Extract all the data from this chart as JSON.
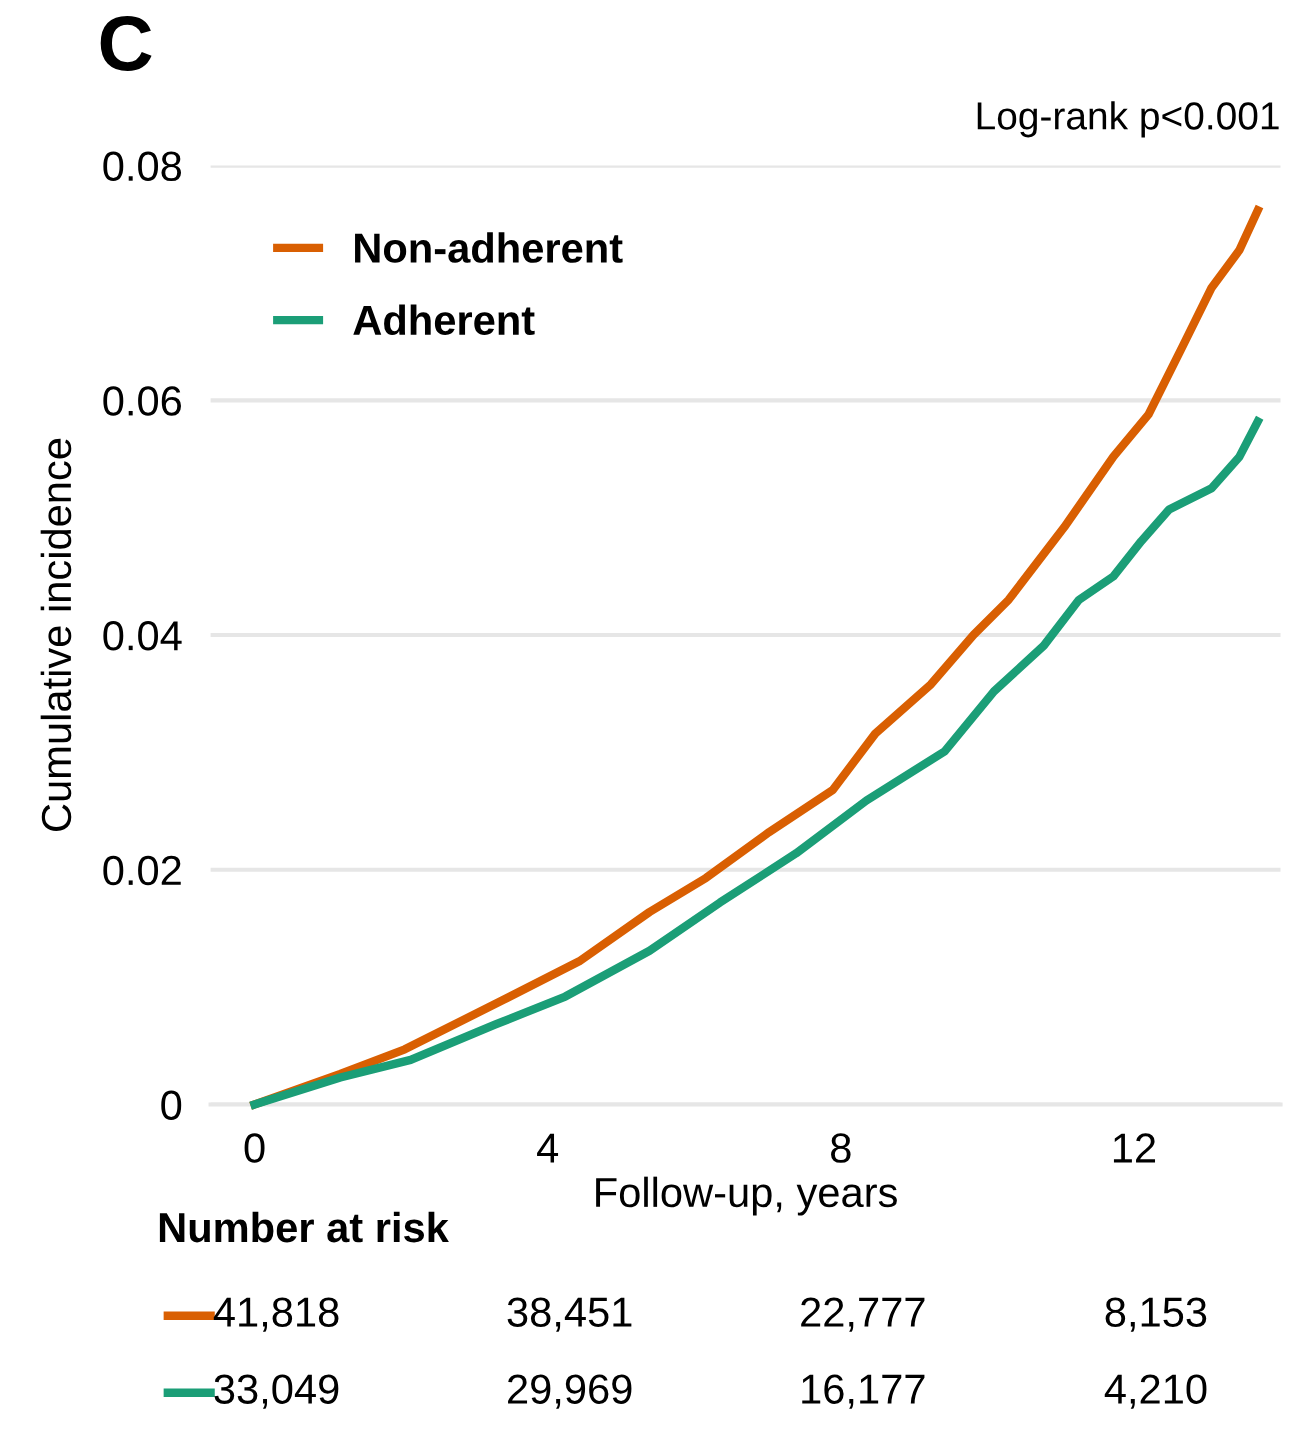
{
  "chart_data": {
    "type": "line",
    "title": "C",
    "xlabel": "Follow-up, years",
    "ylabel": "Cumulative incidence",
    "annotations": [
      "Log-rank p<0.001",
      "Number at risk",
      "41,818",
      "38,451",
      "22,777",
      "8,153",
      "33,049",
      "29,969",
      "16,177",
      "4,210"
    ],
    "series": [
      {
        "name": "Non-adherent",
        "color": "#d95f02",
        "x": [
          0,
          1.17,
          2.05,
          3.39,
          4.43,
          5.39,
          6.16,
          7.02,
          7.89,
          8.47,
          9.23,
          9.81,
          10.29,
          11.05,
          11.72,
          12.2,
          12.68,
          13.06,
          13.44,
          13.69
        ],
        "values": [
          0,
          0.0026,
          0.0047,
          0.0089,
          0.0122,
          0.0164,
          0.0193,
          0.0232,
          0.0268,
          0.0316,
          0.0358,
          0.04,
          0.043,
          0.0492,
          0.0552,
          0.0588,
          0.0648,
          0.0696,
          0.0728,
          0.0762
        ]
      },
      {
        "name": "Adherent",
        "color": "#1b9e77",
        "x": [
          0,
          1.17,
          2.13,
          3.28,
          4.24,
          5.39,
          6.35,
          7.39,
          8.35,
          9.42,
          10.09,
          10.77,
          11.25,
          11.72,
          12.1,
          12.48,
          13.06,
          13.44,
          13.69
        ],
        "values": [
          0,
          0.0023,
          0.0038,
          0.0068,
          0.0092,
          0.0131,
          0.0172,
          0.0214,
          0.0259,
          0.0301,
          0.0352,
          0.0391,
          0.043,
          0.045,
          0.048,
          0.0507,
          0.0525,
          0.0552,
          0.0582
        ]
      }
    ],
    "xlim": [
      -0.6,
      14
    ],
    "xticks": [
      0,
      4,
      8,
      12
    ],
    "ylim": [
      0,
      0.08
    ],
    "yticks": [
      0,
      0.02,
      0.04,
      0.06,
      0.08
    ],
    "grid": "y",
    "legend": "top left",
    "marker": "none",
    "line_style": "solid"
  }
}
